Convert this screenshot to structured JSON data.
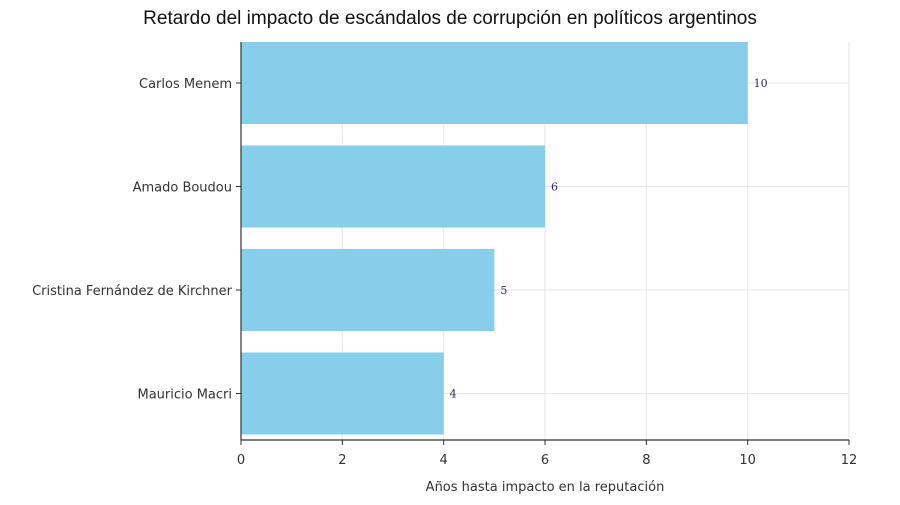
{
  "chart_data": {
    "type": "bar",
    "orientation": "horizontal",
    "title": "Retardo del impacto de escándalos de corrupción en políticos argentinos",
    "xlabel": "Años hasta impacto en la reputación",
    "ylabel": "",
    "categories": [
      "Carlos Menem",
      "Amado Boudou",
      "Cristina Fernández de Kirchner",
      "Mauricio Macri"
    ],
    "values": [
      10,
      6,
      5,
      4
    ],
    "data_labels": [
      "10",
      "6",
      "5",
      "4"
    ],
    "xlim": [
      0,
      12
    ],
    "xticks": [
      "0",
      "2",
      "4",
      "6",
      "8",
      "10",
      "12"
    ],
    "grid": true,
    "bar_color": "#87CEEB",
    "label_color": "#2a2a6a"
  }
}
